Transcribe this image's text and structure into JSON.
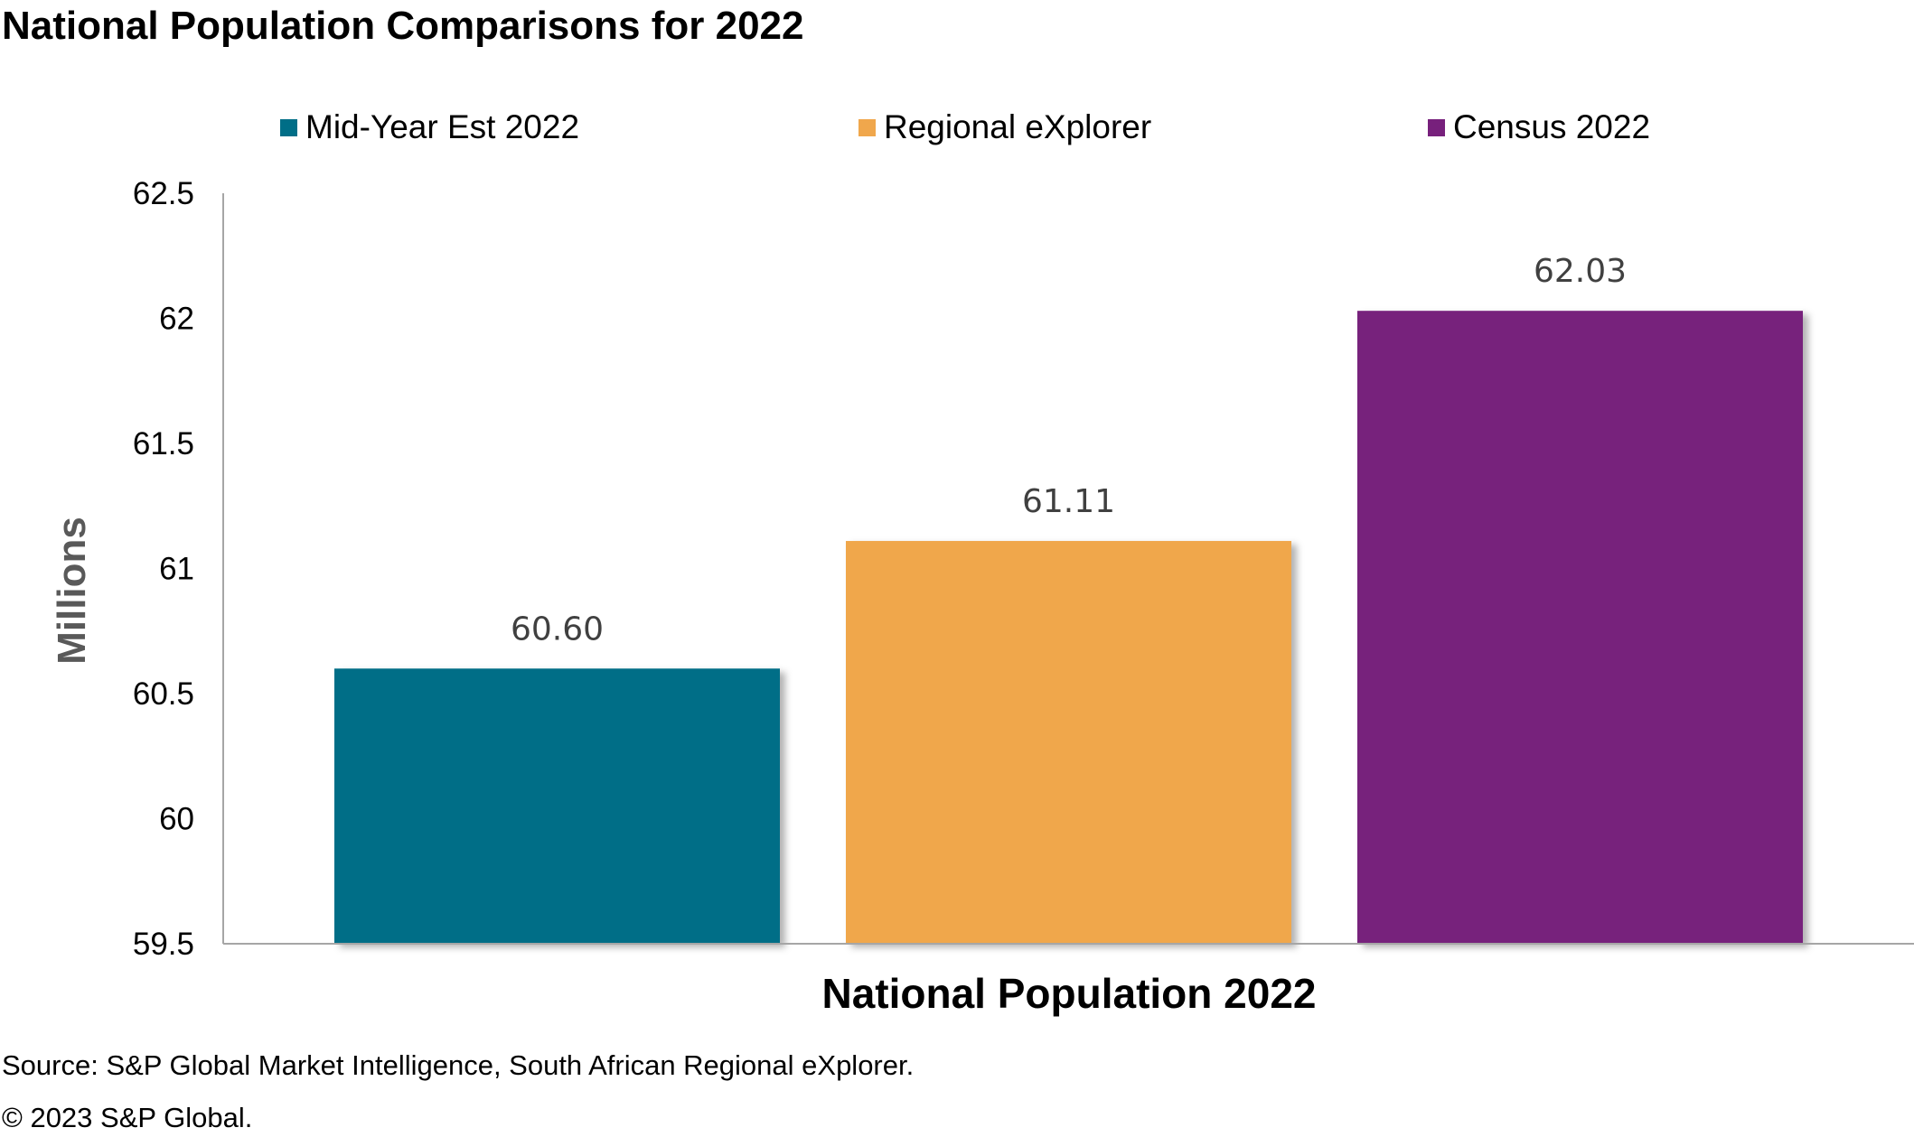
{
  "title": "National Population Comparisons for 2022",
  "source": "Source: S&P Global Market Intelligence, South African Regional eXplorer.",
  "copyright": "© 2023 S&P Global.",
  "chart_data": {
    "type": "bar",
    "categories": [
      "National Population 2022"
    ],
    "series": [
      {
        "name": "Mid-Year Est 2022",
        "values": [
          60.6
        ],
        "label": "60.60",
        "color": "#006e87"
      },
      {
        "name": "Regional eXplorer",
        "values": [
          61.11
        ],
        "label": "61.11",
        "color": "#f0a74c"
      },
      {
        "name": "Census 2022",
        "values": [
          62.03
        ],
        "label": "62.03",
        "color": "#77207c"
      }
    ],
    "xlabel": "National Population 2022",
    "ylabel": "Millions",
    "ylim": [
      59.5,
      62.5
    ],
    "yticks": [
      {
        "value": 59.5,
        "label": "59.5"
      },
      {
        "value": 60,
        "label": "60"
      },
      {
        "value": 60.5,
        "label": "60.5"
      },
      {
        "value": 61,
        "label": "61"
      },
      {
        "value": 61.5,
        "label": "61.5"
      },
      {
        "value": 62,
        "label": "62"
      },
      {
        "value": 62.5,
        "label": "62.5"
      }
    ],
    "grid": false,
    "legend": "top"
  },
  "colors": {
    "axis": "#a6a6a6",
    "data_label": "#404040",
    "ylabel": "#595959"
  }
}
